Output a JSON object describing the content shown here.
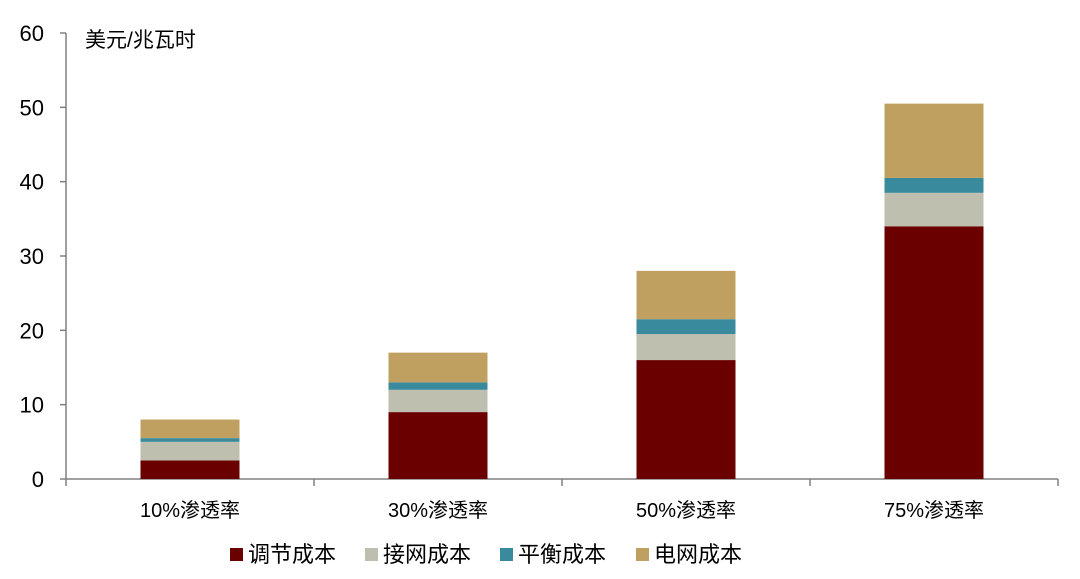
{
  "chart_data": {
    "type": "bar",
    "stacked": true,
    "unit_label": "美元/兆瓦时",
    "categories": [
      "10%渗透率",
      "30%渗透率",
      "50%渗透率",
      "75%渗透率"
    ],
    "series": [
      {
        "name": "调节成本",
        "color": "#6b0000",
        "values": [
          2.5,
          9,
          16,
          34
        ]
      },
      {
        "name": "接网成本",
        "color": "#bfbfb0",
        "values": [
          2.5,
          3,
          3.5,
          4.5
        ]
      },
      {
        "name": "平衡成本",
        "color": "#3a8a9e",
        "values": [
          0.5,
          1,
          2,
          2
        ]
      },
      {
        "name": "电网成本",
        "color": "#c0a060",
        "values": [
          2.5,
          4,
          6.5,
          10
        ]
      }
    ],
    "ylim": [
      0,
      60
    ],
    "yticks": [
      0,
      10,
      20,
      30,
      40,
      50,
      60
    ],
    "grid": false,
    "legend": "bottom"
  }
}
